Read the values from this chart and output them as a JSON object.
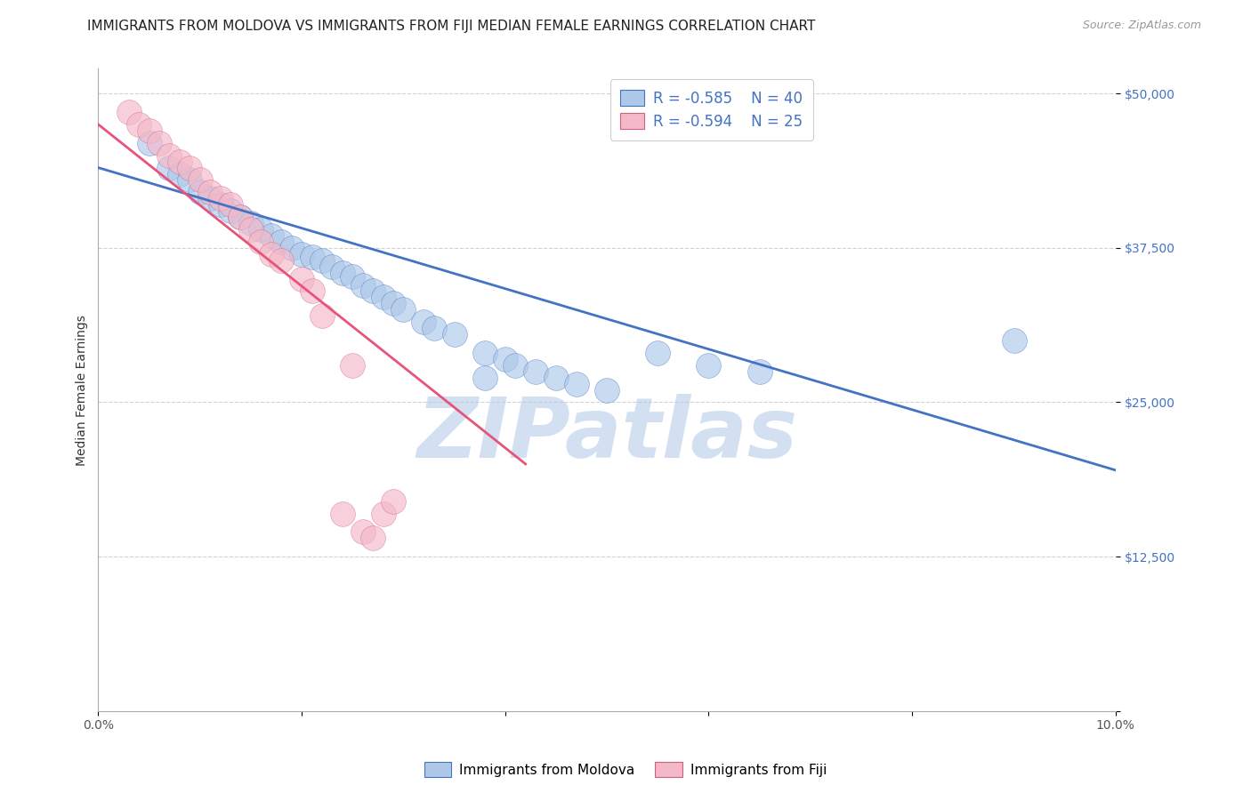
{
  "title": "IMMIGRANTS FROM MOLDOVA VS IMMIGRANTS FROM FIJI MEDIAN FEMALE EARNINGS CORRELATION CHART",
  "source": "Source: ZipAtlas.com",
  "ylabel": "Median Female Earnings",
  "x_min": 0.0,
  "x_max": 0.1,
  "y_min": 0,
  "y_max": 52000,
  "y_ticks": [
    0,
    12500,
    25000,
    37500,
    50000
  ],
  "y_tick_labels": [
    "",
    "$12,500",
    "$25,000",
    "$37,500",
    "$50,000"
  ],
  "x_ticks": [
    0.0,
    0.02,
    0.04,
    0.06,
    0.08,
    0.1
  ],
  "x_tick_labels": [
    "0.0%",
    "",
    "",
    "",
    "",
    "10.0%"
  ],
  "legend_r_moldova": "-0.585",
  "legend_n_moldova": "40",
  "legend_r_fiji": "-0.594",
  "legend_n_fiji": "25",
  "moldova_color": "#adc8e8",
  "fiji_color": "#f4b8c8",
  "moldova_line_color": "#4472C4",
  "fiji_line_color": "#e8537a",
  "watermark": "ZIPatlas",
  "watermark_color_zip": "#b0c8e8",
  "watermark_color_atlas": "#9ab8d8",
  "moldova_scatter_x": [
    0.005,
    0.007,
    0.008,
    0.009,
    0.01,
    0.011,
    0.012,
    0.013,
    0.014,
    0.015,
    0.016,
    0.017,
    0.018,
    0.019,
    0.02,
    0.021,
    0.022,
    0.023,
    0.024,
    0.025,
    0.026,
    0.027,
    0.028,
    0.029,
    0.03,
    0.032,
    0.033,
    0.035,
    0.038,
    0.04,
    0.041,
    0.043,
    0.045,
    0.047,
    0.05,
    0.055,
    0.06,
    0.065,
    0.09,
    0.038
  ],
  "moldova_scatter_y": [
    46000,
    44000,
    43500,
    43000,
    42000,
    41500,
    41000,
    40500,
    40000,
    39500,
    39000,
    38500,
    38000,
    37500,
    37000,
    36800,
    36500,
    36000,
    35500,
    35200,
    34500,
    34000,
    33500,
    33000,
    32500,
    31500,
    31000,
    30500,
    29000,
    28500,
    28000,
    27500,
    27000,
    26500,
    26000,
    29000,
    28000,
    27500,
    30000,
    27000
  ],
  "fiji_scatter_x": [
    0.003,
    0.004,
    0.005,
    0.006,
    0.007,
    0.008,
    0.009,
    0.01,
    0.011,
    0.012,
    0.013,
    0.014,
    0.015,
    0.016,
    0.017,
    0.018,
    0.02,
    0.021,
    0.022,
    0.024,
    0.025,
    0.026,
    0.027,
    0.028,
    0.029
  ],
  "fiji_scatter_y": [
    48500,
    47500,
    47000,
    46000,
    45000,
    44500,
    44000,
    43000,
    42000,
    41500,
    41000,
    40000,
    39000,
    38000,
    37000,
    36500,
    35000,
    34000,
    32000,
    16000,
    28000,
    14500,
    14000,
    16000,
    17000
  ],
  "moldova_trend_x": [
    0.0,
    0.1
  ],
  "moldova_trend_y": [
    44000,
    19500
  ],
  "fiji_trend_x": [
    0.0,
    0.042
  ],
  "fiji_trend_y": [
    47500,
    20000
  ],
  "scatter_size": 400,
  "title_fontsize": 11,
  "source_fontsize": 9,
  "legend_fontsize": 12,
  "axis_label_fontsize": 10,
  "tick_fontsize": 10
}
